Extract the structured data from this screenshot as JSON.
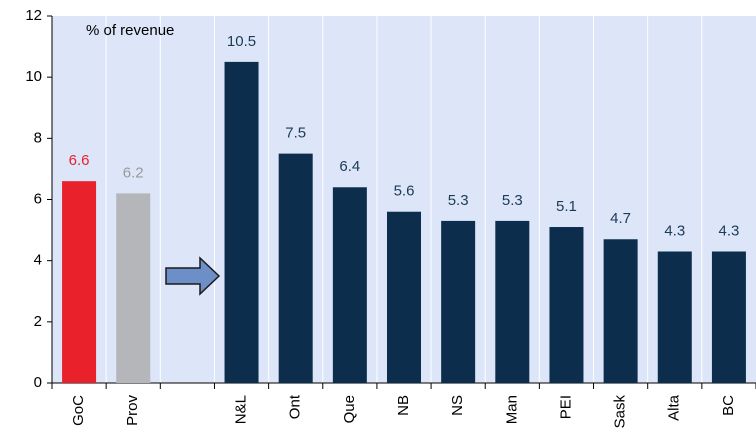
{
  "chart_data": {
    "type": "bar",
    "annotation": "% of revenue",
    "categories": [
      "GoC",
      "Prov",
      null,
      "N&L",
      "Ont",
      "Que",
      "NB",
      "NS",
      "Man",
      "PEI",
      "Sask",
      "Alta",
      "BC"
    ],
    "values": [
      6.6,
      6.2,
      null,
      10.5,
      7.5,
      6.4,
      5.6,
      5.3,
      5.3,
      5.1,
      4.7,
      4.3,
      4.3
    ],
    "colors": [
      "#e8212b",
      "#b4b6b9",
      null,
      "#0c2e4c",
      "#0c2e4c",
      "#0c2e4c",
      "#0c2e4c",
      "#0c2e4c",
      "#0c2e4c",
      "#0c2e4c",
      "#0c2e4c",
      "#0c2e4c",
      "#0c2e4c"
    ],
    "label_colors": [
      "#e8212b",
      "#9a9a9a",
      null,
      "#1d3a57",
      "#1d3a57",
      "#1d3a57",
      "#1d3a57",
      "#1d3a57",
      "#1d3a57",
      "#1d3a57",
      "#1d3a57",
      "#1d3a57",
      "#1d3a57"
    ],
    "ylim": [
      0,
      12
    ],
    "yticks": [
      0,
      2,
      4,
      6,
      8,
      10,
      12
    ]
  }
}
